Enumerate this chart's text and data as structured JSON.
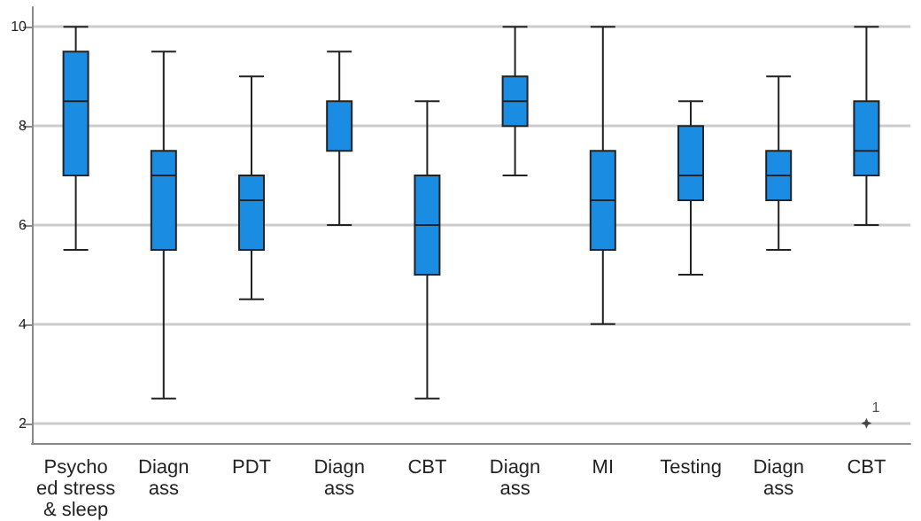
{
  "chart_data": {
    "type": "box",
    "categories": [
      "Psycho\ned stress\n& sleep",
      "Diagn\nass",
      "PDT",
      "Diagn\nass",
      "CBT",
      "Diagn\nass",
      "MI",
      "Testing",
      "Diagn\nass",
      "CBT"
    ],
    "color": "#1a8de3",
    "boxes": [
      {
        "low": 5.5,
        "q1": 7,
        "median": 8.5,
        "q3": 9.5,
        "high": 10
      },
      {
        "low": 2.5,
        "q1": 5.5,
        "median": 7,
        "q3": 7.5,
        "high": 9.5
      },
      {
        "low": 4.5,
        "q1": 5.5,
        "median": 6.5,
        "q3": 7,
        "high": 9
      },
      {
        "low": 6,
        "q1": 7.5,
        "median": 8.5,
        "q3": 8.5,
        "high": 9.5
      },
      {
        "low": 2.5,
        "q1": 5,
        "median": 6,
        "q3": 7,
        "high": 8.5
      },
      {
        "low": 7,
        "q1": 8,
        "median": 8.5,
        "q3": 9,
        "high": 10
      },
      {
        "low": 4,
        "q1": 5.5,
        "median": 6.5,
        "q3": 7.5,
        "high": 10
      },
      {
        "low": 5,
        "q1": 6.5,
        "median": 7,
        "q3": 8,
        "high": 8.5
      },
      {
        "low": 5.5,
        "q1": 6.5,
        "median": 7,
        "q3": 7.5,
        "high": 9
      },
      {
        "low": 6,
        "q1": 7,
        "median": 7.5,
        "q3": 8.5,
        "high": 10,
        "outliers": [
          2
        ]
      }
    ],
    "annotations": [
      "1"
    ],
    "ylim": [
      1.6,
      10.4
    ],
    "yticks": [
      2,
      4,
      6,
      8,
      10
    ],
    "grid": "y"
  }
}
